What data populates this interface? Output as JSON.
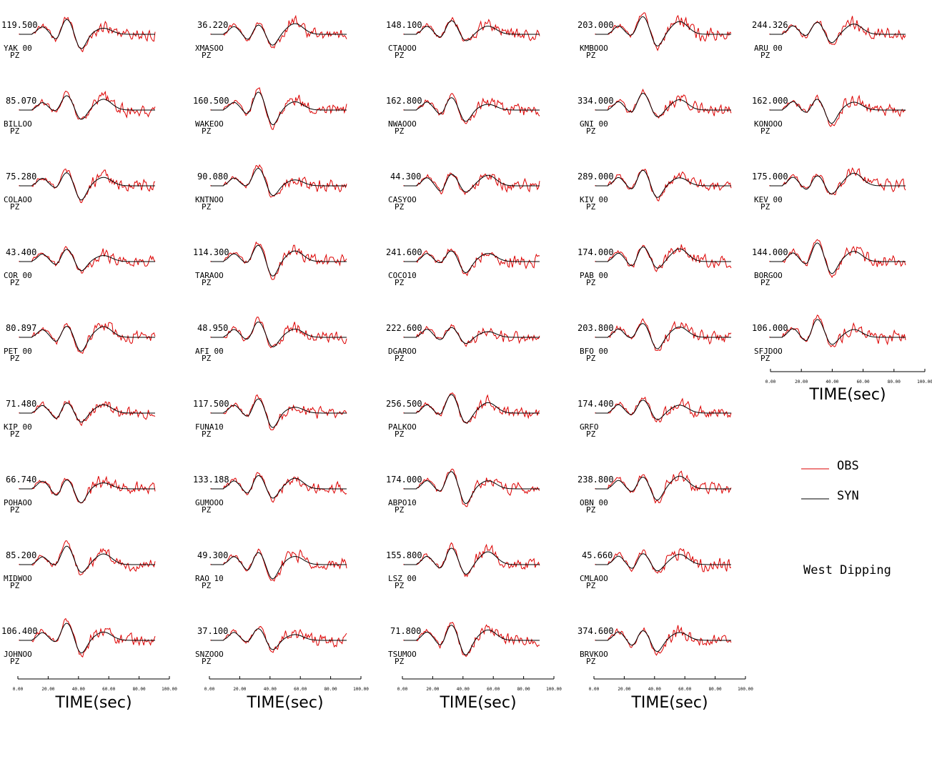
{
  "chart_data": {
    "type": "line",
    "xlabel": "TIME(sec)",
    "xlim": [
      0,
      100
    ],
    "xticks": [
      "0.00",
      "20.00",
      "40.00",
      "60.00",
      "80.00",
      "100.00"
    ],
    "annotation": "West Dipping",
    "legend": {
      "placement": "right",
      "entries": [
        {
          "label": "OBS",
          "color": "#dd0000"
        },
        {
          "label": "SYN",
          "color": "#000000"
        }
      ]
    },
    "columns": [
      {
        "stations": [
          {
            "amp": "119.500",
            "station": "YAK  00",
            "comp": "PZ"
          },
          {
            "amp": "85.070",
            "station": "BILLOO",
            "comp": "PZ"
          },
          {
            "amp": "75.280",
            "station": "COLAOO",
            "comp": "PZ"
          },
          {
            "amp": "43.400",
            "station": "COR  00",
            "comp": "PZ"
          },
          {
            "amp": "80.897",
            "station": "PET  00",
            "comp": "PZ"
          },
          {
            "amp": "71.480",
            "station": "KIP  00",
            "comp": "PZ"
          },
          {
            "amp": "66.740",
            "station": "POHAOO",
            "comp": "PZ"
          },
          {
            "amp": "85.200",
            "station": "MIDWOO",
            "comp": "PZ"
          },
          {
            "amp": "106.400",
            "station": "JOHNOO",
            "comp": "PZ"
          }
        ]
      },
      {
        "stations": [
          {
            "amp": "36.220",
            "station": "XMASOO",
            "comp": "PZ"
          },
          {
            "amp": "160.500",
            "station": "WAKEOO",
            "comp": "PZ"
          },
          {
            "amp": "90.080",
            "station": "KNTNOO",
            "comp": "PZ"
          },
          {
            "amp": "114.300",
            "station": "TARAOO",
            "comp": "PZ"
          },
          {
            "amp": "48.950",
            "station": "AFI  00",
            "comp": "PZ"
          },
          {
            "amp": "117.500",
            "station": "FUNA10",
            "comp": "PZ"
          },
          {
            "amp": "133.188",
            "station": "GUMOOO",
            "comp": "PZ"
          },
          {
            "amp": "49.300",
            "station": "RAO  10",
            "comp": "PZ"
          },
          {
            "amp": "37.100",
            "station": "SNZOOO",
            "comp": "PZ"
          }
        ]
      },
      {
        "stations": [
          {
            "amp": "148.100",
            "station": "CTAOOO",
            "comp": "PZ"
          },
          {
            "amp": "162.800",
            "station": "NWAOOO",
            "comp": "PZ"
          },
          {
            "amp": "44.300",
            "station": "CASYOO",
            "comp": "PZ"
          },
          {
            "amp": "241.600",
            "station": "COCO10",
            "comp": "PZ"
          },
          {
            "amp": "222.600",
            "station": "DGAROO",
            "comp": "PZ"
          },
          {
            "amp": "256.500",
            "station": "PALKOO",
            "comp": "PZ"
          },
          {
            "amp": "174.000",
            "station": "ABPO10",
            "comp": "PZ"
          },
          {
            "amp": "155.800",
            "station": "LSZ  00",
            "comp": "PZ"
          },
          {
            "amp": "71.800",
            "station": "TSUMOO",
            "comp": "PZ"
          }
        ]
      },
      {
        "stations": [
          {
            "amp": "203.000",
            "station": "KMBOOO",
            "comp": "PZ"
          },
          {
            "amp": "334.000",
            "station": "GNI  00",
            "comp": "PZ"
          },
          {
            "amp": "289.000",
            "station": "KIV  00",
            "comp": "PZ"
          },
          {
            "amp": "174.000",
            "station": "PAB  00",
            "comp": "PZ"
          },
          {
            "amp": "203.800",
            "station": "BFO  00",
            "comp": "PZ"
          },
          {
            "amp": "174.400",
            "station": "GRFO",
            "comp": "PZ"
          },
          {
            "amp": "238.800",
            "station": "OBN  00",
            "comp": "PZ"
          },
          {
            "amp": "45.660",
            "station": "CMLAOO",
            "comp": "PZ"
          },
          {
            "amp": "374.600",
            "station": "BRVKOO",
            "comp": "PZ"
          }
        ]
      },
      {
        "stations": [
          {
            "amp": "244.326",
            "station": "ARU  00",
            "comp": "PZ"
          },
          {
            "amp": "162.000",
            "station": "KONOOO",
            "comp": "PZ"
          },
          {
            "amp": "175.000",
            "station": "KEV  00",
            "comp": "PZ"
          },
          {
            "amp": "144.000",
            "station": "BORGOO",
            "comp": "PZ"
          },
          {
            "amp": "106.000",
            "station": "SFJDOO",
            "comp": "PZ"
          }
        ]
      }
    ]
  }
}
